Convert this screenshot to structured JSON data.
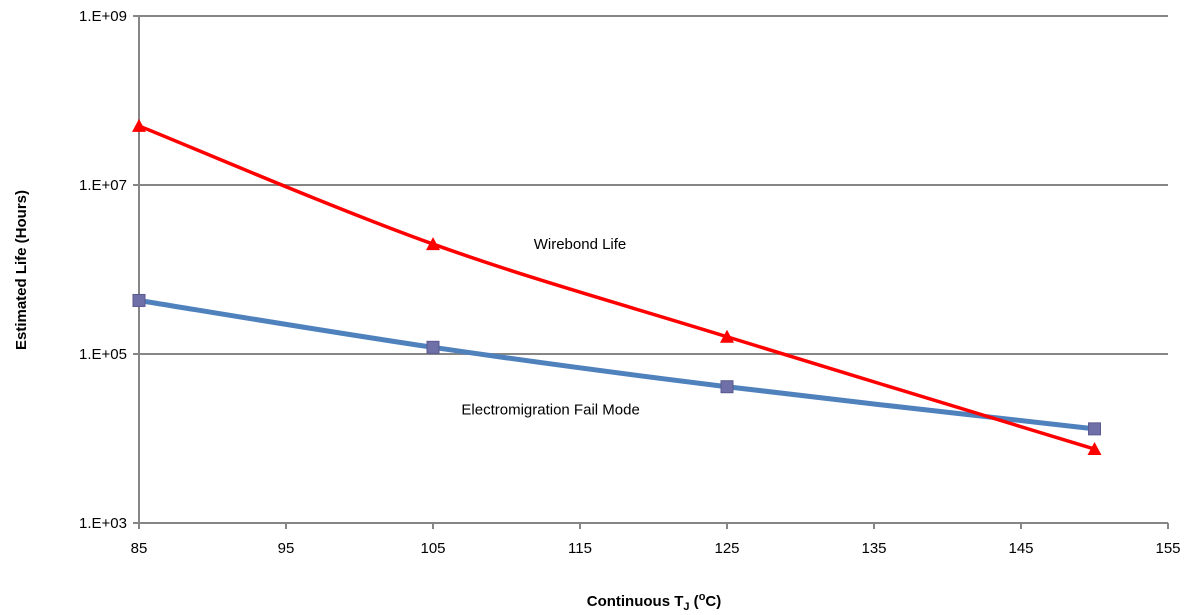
{
  "chart_data": {
    "type": "line",
    "title": "",
    "xlabel_main": "Continuous T",
    "xlabel_sub": "J",
    "xlabel_open": " (",
    "xlabel_sup": "o",
    "xlabel_close": "C)",
    "ylabel": "Estimated Life (Hours)",
    "xlim": [
      85,
      155
    ],
    "ylim": [
      1000,
      1000000000
    ],
    "yscale": "log",
    "grid": "horizontal",
    "x_ticks": [
      85,
      95,
      105,
      115,
      125,
      135,
      145,
      155
    ],
    "x_tick_labels": [
      "85",
      "95",
      "105",
      "115",
      "125",
      "135",
      "145",
      "155"
    ],
    "y_ticks": [
      1000,
      100000,
      10000000,
      1000000000
    ],
    "y_tick_labels": [
      "1.E+03",
      "1.E+05",
      "1.E+07",
      "1.E+09"
    ],
    "series": [
      {
        "key": "wirebond",
        "x": [
          85,
          105,
          125,
          150
        ],
        "values": [
          50000000,
          2000000,
          160000,
          7500
        ],
        "color": "#ff0000",
        "marker": "triangle"
      },
      {
        "key": "electromigration",
        "x": [
          85,
          105,
          125,
          150
        ],
        "values": [
          430000,
          120000,
          41000,
          13000
        ],
        "color": "#4f81bd",
        "marker_color": "#7070a8",
        "marker": "square"
      }
    ],
    "annotations": [
      {
        "text": "Wirebond Life",
        "x": 115,
        "y": 2000000
      },
      {
        "text": "Electromigration Fail Mode",
        "x": 113,
        "y": 22000
      }
    ]
  }
}
